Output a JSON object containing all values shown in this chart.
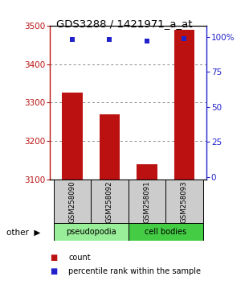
{
  "title": "GDS3288 / 1421971_a_at",
  "samples": [
    "GSM258090",
    "GSM258092",
    "GSM258091",
    "GSM258093"
  ],
  "bar_values": [
    3325,
    3270,
    3140,
    3490
  ],
  "percentile_values": [
    98,
    98,
    97,
    99
  ],
  "ymin": 3100,
  "ymax": 3500,
  "yticks_left": [
    3100,
    3200,
    3300,
    3400,
    3500
  ],
  "yticks_right": [
    0,
    25,
    50,
    75,
    100
  ],
  "bar_color": "#bb1111",
  "percentile_color": "#2222cc",
  "groups": [
    {
      "label": "pseudopodia",
      "indices": [
        0,
        1
      ],
      "color": "#99ee99"
    },
    {
      "label": "cell bodies",
      "indices": [
        2,
        3
      ],
      "color": "#44cc44"
    }
  ],
  "grid_color": "#888888",
  "label_area_color": "#cccccc",
  "bar_width": 0.55
}
